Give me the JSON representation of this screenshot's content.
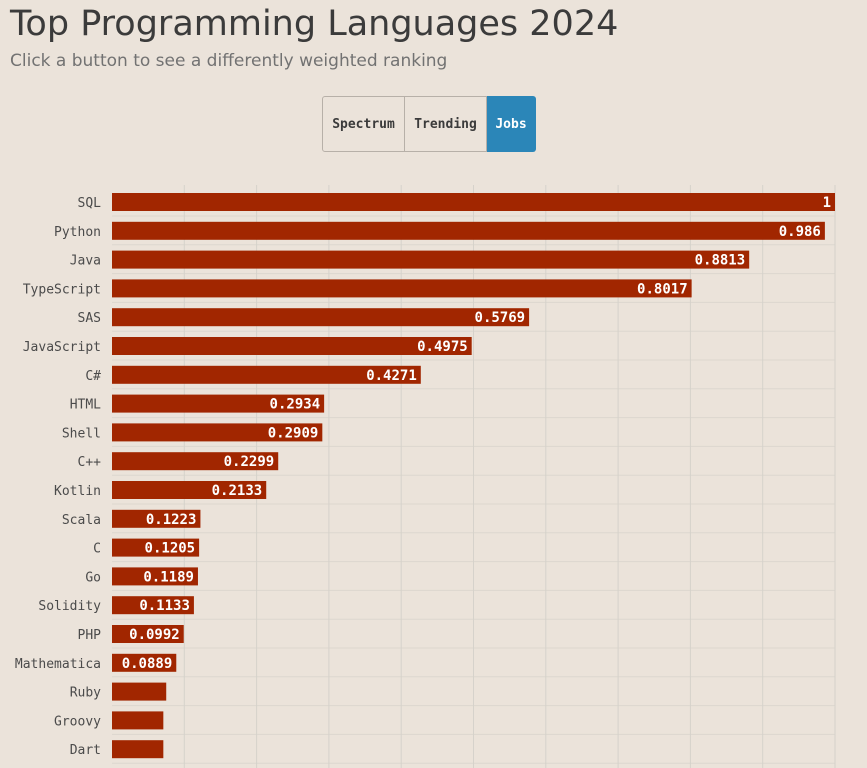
{
  "header": {
    "title": "Top Programming Languages 2024",
    "subtitle": "Click a button to see a differently weighted ranking"
  },
  "buttons": [
    {
      "label": "Spectrum",
      "active": false
    },
    {
      "label": "Trending",
      "active": false
    },
    {
      "label": "Jobs",
      "active": true
    }
  ],
  "colors": {
    "background": "#ebe3da",
    "bar": "#a12600",
    "active_button": "#2b86b8",
    "grid": "#d6d2cb"
  },
  "chart_data": {
    "type": "bar",
    "orientation": "horizontal",
    "grid": true,
    "xlim": [
      0,
      1
    ],
    "categories": [
      "SQL",
      "Python",
      "Java",
      "TypeScript",
      "SAS",
      "JavaScript",
      "C#",
      "HTML",
      "Shell",
      "C++",
      "Kotlin",
      "Scala",
      "C",
      "Go",
      "Solidity",
      "PHP",
      "Mathematica",
      "Ruby",
      "Groovy",
      "Dart"
    ],
    "values": [
      1,
      0.986,
      0.8813,
      0.8017,
      0.5769,
      0.4975,
      0.4271,
      0.2934,
      0.2909,
      0.2299,
      0.2133,
      0.1223,
      0.1205,
      0.1189,
      0.1133,
      0.0992,
      0.0889,
      0.075,
      0.071,
      0.071
    ],
    "data_labels": [
      "1",
      "0.986",
      "0.8813",
      "0.8017",
      "0.5769",
      "0.4975",
      "0.4271",
      "0.2934",
      "0.2909",
      "0.2299",
      "0.2133",
      "0.1223",
      "0.1205",
      "0.1189",
      "0.1133",
      "0.0992",
      "0.0889",
      "",
      "",
      ""
    ]
  }
}
